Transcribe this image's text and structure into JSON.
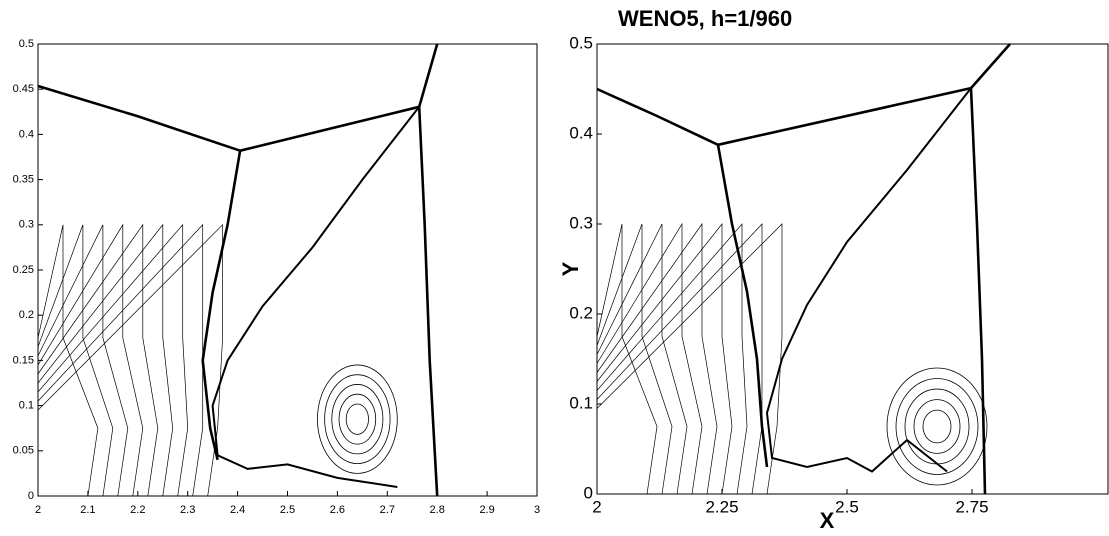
{
  "chart_data": [
    {
      "type": "contour",
      "xlim": [
        2,
        3
      ],
      "ylim": [
        0,
        0.5
      ],
      "xticks": [
        2,
        2.1,
        2.2,
        2.3,
        2.4,
        2.5,
        2.6,
        2.7,
        2.8,
        2.9,
        3
      ],
      "yticks": [
        0,
        0.05,
        0.1,
        0.15,
        0.2,
        0.25,
        0.3,
        0.35,
        0.4,
        0.45,
        0.5
      ]
    },
    {
      "type": "contour",
      "title": "WENO5, h=1/960",
      "xlabel": "X",
      "ylabel": "Y",
      "xlim": [
        2,
        3
      ],
      "ylim": [
        0,
        0.5
      ],
      "xticks": [
        2,
        2.25,
        2.5,
        2.75
      ],
      "yticks": [
        0,
        0.1,
        0.2,
        0.3,
        0.4,
        0.5
      ]
    }
  ]
}
